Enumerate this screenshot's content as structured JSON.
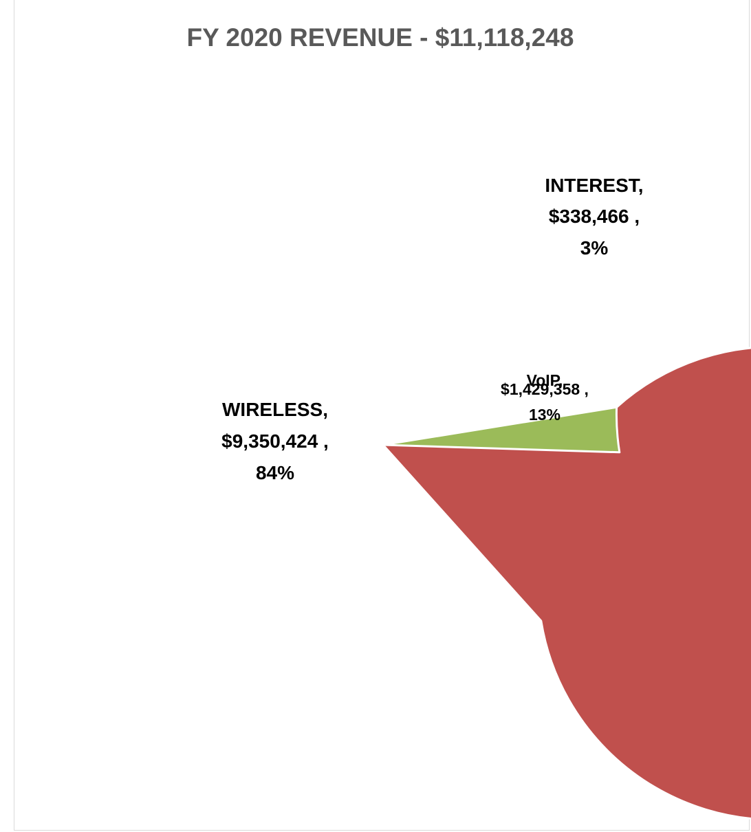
{
  "chart_data": {
    "type": "pie",
    "title": "FY 2020 REVENUE - $11,118,248",
    "slices": [
      {
        "category": "VoIP",
        "amount_label": "$1,429,358 ,",
        "percent_label": "13%",
        "value": 1429358,
        "color": "#4f81bd"
      },
      {
        "category": "WIRELESS",
        "amount_label": "$9,350,424 ,",
        "percent_label": "84%",
        "value": 9350424,
        "color": "#c0504d"
      },
      {
        "category": "INTEREST",
        "amount_label": "$338,466 ,",
        "percent_label": "3%",
        "value": 338466,
        "color": "#9bbb59"
      }
    ],
    "legend": "none",
    "grid": false
  }
}
